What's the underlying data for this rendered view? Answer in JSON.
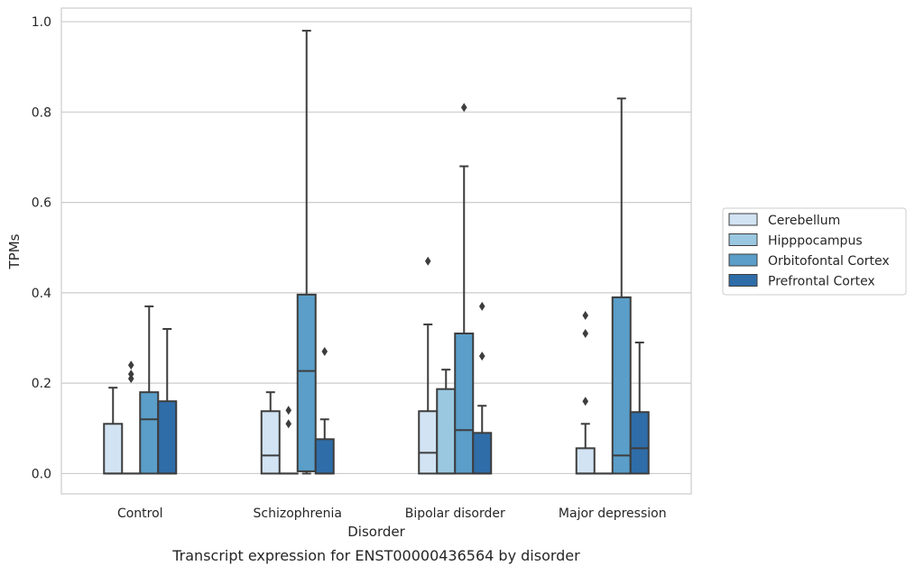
{
  "caption": "Transcript expression for ENST00000436564 by disorder",
  "chart_data": {
    "type": "box",
    "xlabel": "Disorder",
    "ylabel": "TPMs",
    "ylim": [
      -0.045,
      1.03
    ],
    "yticks": [
      0.0,
      0.2,
      0.4,
      0.6,
      0.8,
      1.0
    ],
    "ytick_labels": [
      "0.0",
      "0.2",
      "0.4",
      "0.6",
      "0.8",
      "1.0"
    ],
    "grid": "horizontal",
    "legend_position": "right",
    "categories": [
      "Control",
      "Schizophrenia",
      "Bipolar disorder",
      "Major depression"
    ],
    "series": [
      {
        "name": "Cerebellum",
        "color": "#d2e3f3",
        "boxes": [
          {
            "whisker_low": 0.0,
            "q1": 0.0,
            "median": 0.0,
            "q3": 0.11,
            "whisker_high": 0.19,
            "outliers": []
          },
          {
            "whisker_low": 0.0,
            "q1": 0.0,
            "median": 0.04,
            "q3": 0.138,
            "whisker_high": 0.18,
            "outliers": []
          },
          {
            "whisker_low": 0.0,
            "q1": 0.0,
            "median": 0.046,
            "q3": 0.138,
            "whisker_high": 0.33,
            "outliers": [
              0.47
            ]
          },
          {
            "whisker_low": 0.0,
            "q1": 0.0,
            "median": 0.0,
            "q3": 0.056,
            "whisker_high": 0.11,
            "outliers": [
              0.16,
              0.31,
              0.35
            ]
          }
        ]
      },
      {
        "name": "Hipppocampus",
        "color": "#9ac8e0",
        "boxes": [
          {
            "whisker_low": 0.0,
            "q1": 0.0,
            "median": 0.0,
            "q3": 0.0,
            "whisker_high": 0.0,
            "outliers": [
              0.21,
              0.22,
              0.24
            ]
          },
          {
            "whisker_low": 0.0,
            "q1": 0.0,
            "median": 0.0,
            "q3": 0.0,
            "whisker_high": 0.0,
            "outliers": [
              0.11,
              0.14
            ]
          },
          {
            "whisker_low": 0.0,
            "q1": 0.0,
            "median": 0.0,
            "q3": 0.187,
            "whisker_high": 0.23,
            "outliers": []
          },
          {
            "whisker_low": 0.0,
            "q1": 0.0,
            "median": 0.0,
            "q3": 0.0,
            "whisker_high": 0.0,
            "outliers": []
          }
        ]
      },
      {
        "name": "Orbitofontal Cortex",
        "color": "#5a9ec9",
        "boxes": [
          {
            "whisker_low": 0.0,
            "q1": 0.0,
            "median": 0.12,
            "q3": 0.18,
            "whisker_high": 0.37,
            "outliers": []
          },
          {
            "whisker_low": 0.0,
            "q1": 0.005,
            "median": 0.227,
            "q3": 0.396,
            "whisker_high": 0.98,
            "outliers": []
          },
          {
            "whisker_low": 0.0,
            "q1": 0.0,
            "median": 0.096,
            "q3": 0.31,
            "whisker_high": 0.68,
            "outliers": [
              0.81
            ]
          },
          {
            "whisker_low": 0.0,
            "q1": 0.0,
            "median": 0.04,
            "q3": 0.39,
            "whisker_high": 0.83,
            "outliers": []
          }
        ]
      },
      {
        "name": "Prefrontal Cortex",
        "color": "#2f6da8",
        "boxes": [
          {
            "whisker_low": 0.0,
            "q1": 0.0,
            "median": 0.0,
            "q3": 0.16,
            "whisker_high": 0.32,
            "outliers": []
          },
          {
            "whisker_low": 0.0,
            "q1": 0.0,
            "median": 0.0,
            "q3": 0.076,
            "whisker_high": 0.12,
            "outliers": [
              0.27
            ]
          },
          {
            "whisker_low": 0.0,
            "q1": 0.0,
            "median": 0.0,
            "q3": 0.09,
            "whisker_high": 0.15,
            "outliers": [
              0.26,
              0.37
            ]
          },
          {
            "whisker_low": 0.0,
            "q1": 0.0,
            "median": 0.056,
            "q3": 0.136,
            "whisker_high": 0.29,
            "outliers": []
          }
        ]
      }
    ]
  }
}
